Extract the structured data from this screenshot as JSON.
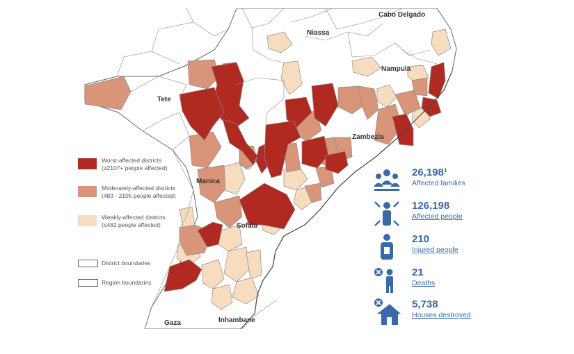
{
  "colors": {
    "worst": "#b02a22",
    "moderate": "#d9957a",
    "weak": "#f7dcc0",
    "boundary": "#555555",
    "stat_blue": "#3a6aa6"
  },
  "regions": {
    "niassa": "Niassa",
    "cabo_delgado": "Cabo Delgado",
    "nampula": "Nampula",
    "tete": "Tete",
    "zambezia": "Zambezia",
    "manica": "Manica",
    "sofala": "Sofala",
    "gaza": "Gaza",
    "inhambane": "Inhambane"
  },
  "legend": {
    "worst_line1": "Worst-affected districts",
    "worst_line2": "(≥2107+ people affected)",
    "moderate_line1": "Moderately-affected districts",
    "moderate_line2": "(483 - 2105 people affected)",
    "weak_line1": "Weakly-affected districts",
    "weak_line2": "(≤482 people affected)",
    "district_boundaries": "District boundaries",
    "region_boundaries": "Region boundaries"
  },
  "stats": {
    "families_value": "26,198¹",
    "families_label": "Affected families",
    "people_value": "126,198",
    "people_label": "Affected people",
    "injured_value": "210",
    "injured_label": "Injured people",
    "deaths_value": "21",
    "deaths_label": "Deaths",
    "houses_value": "5,738",
    "houses_label": "Houses destroyed"
  }
}
